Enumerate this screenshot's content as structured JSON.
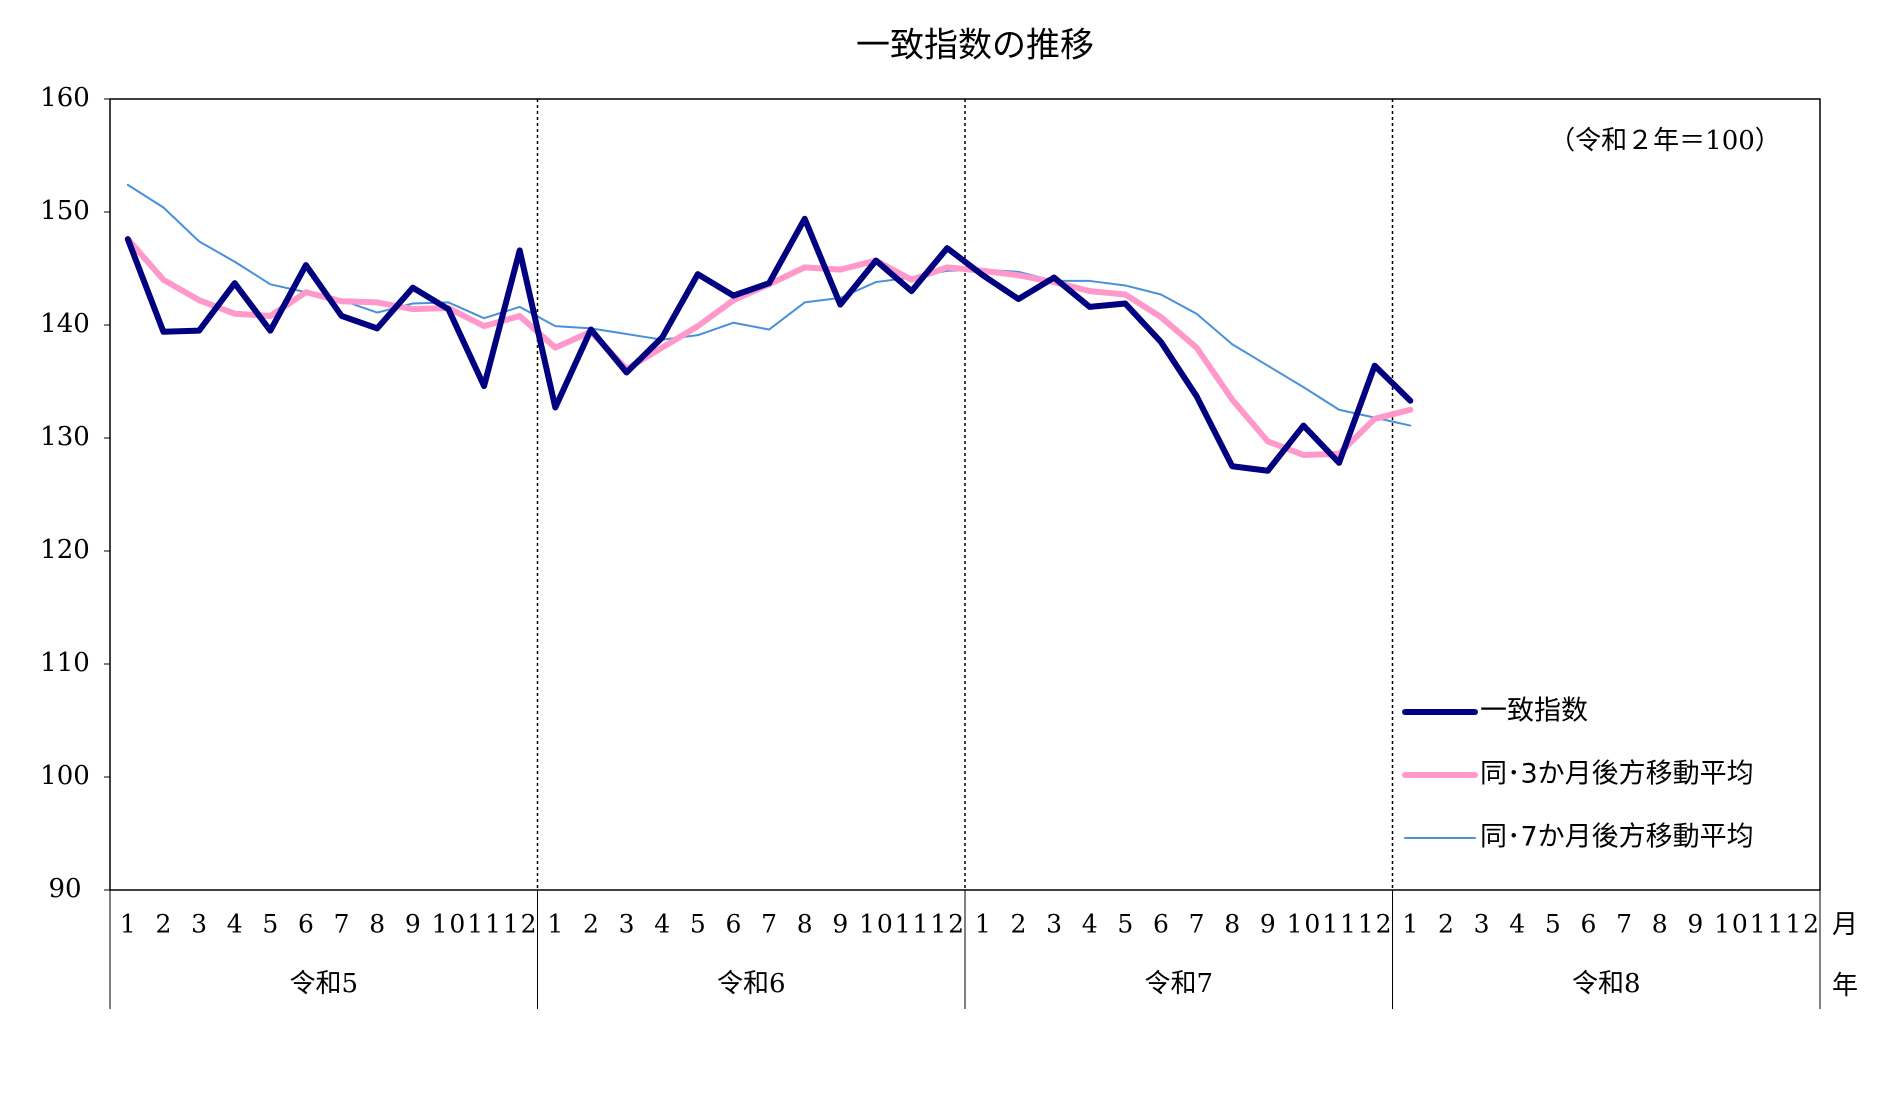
{
  "chart_data": {
    "type": "line",
    "title": "一致指数の推移",
    "note": "（令和２年＝100）",
    "x_unit_month": "月",
    "x_unit_year": "年",
    "categories": [
      "1",
      "2",
      "3",
      "4",
      "5",
      "6",
      "7",
      "8",
      "9",
      "10",
      "11",
      "12",
      "1",
      "2",
      "3",
      "4",
      "5",
      "6",
      "7",
      "8",
      "9",
      "10",
      "11",
      "12",
      "1",
      "2",
      "3",
      "4",
      "5",
      "6",
      "7",
      "8",
      "9",
      "10",
      "11",
      "12",
      "1",
      "2",
      "3",
      "4",
      "5",
      "6",
      "7",
      "8",
      "9",
      "10",
      "11",
      "12"
    ],
    "year_groups": [
      "令和5",
      "令和6",
      "令和7",
      "令和8"
    ],
    "ylim": [
      90,
      160
    ],
    "yticks": [
      90,
      100,
      110,
      120,
      130,
      140,
      150,
      160
    ],
    "grid": false,
    "legend": "right",
    "series": [
      {
        "name": "一致指数",
        "color": "#000080",
        "values": [
          147.6,
          139.4,
          139.5,
          143.7,
          139.5,
          145.3,
          140.8,
          139.7,
          143.3,
          141.4,
          134.6,
          146.6,
          132.7,
          139.6,
          135.8,
          138.9,
          144.5,
          142.6,
          143.7,
          149.4,
          141.8,
          145.7,
          143.0,
          146.8,
          144.4,
          142.3,
          144.2,
          141.6,
          141.9,
          138.5,
          133.7,
          127.5,
          127.1,
          131.1,
          127.8,
          136.4,
          133.3,
          null,
          null,
          null,
          null,
          null,
          null,
          null,
          null,
          null,
          null,
          null
        ]
      },
      {
        "name": "同･3か月後方移動平均",
        "color": "#ff99cc",
        "values": [
          147.6,
          144.0,
          142.2,
          141.0,
          140.8,
          142.9,
          142.1,
          142.0,
          141.4,
          141.5,
          139.9,
          140.8,
          138.0,
          139.4,
          136.1,
          138.0,
          139.9,
          142.2,
          143.6,
          145.1,
          144.9,
          145.7,
          144.0,
          145.1,
          144.8,
          144.4,
          143.8,
          143.0,
          142.7,
          140.7,
          138.0,
          133.4,
          129.7,
          128.5,
          128.6,
          131.7,
          132.5,
          null,
          null,
          null,
          null,
          null,
          null,
          null,
          null,
          null,
          null,
          null
        ]
      },
      {
        "name": "同･7か月後方移動平均",
        "color": "#4a90d9",
        "values": [
          152.4,
          150.4,
          147.4,
          145.6,
          143.6,
          142.9,
          142.2,
          141.1,
          141.9,
          142.0,
          140.6,
          141.6,
          139.9,
          139.7,
          139.2,
          138.7,
          139.1,
          140.2,
          139.6,
          142.0,
          142.4,
          143.8,
          144.2,
          144.8,
          144.9,
          144.7,
          143.9,
          143.9,
          143.5,
          142.7,
          141.0,
          138.3,
          136.4,
          134.5,
          132.5,
          131.8,
          131.1,
          null,
          null,
          null,
          null,
          null,
          null,
          null,
          null,
          null,
          null,
          null
        ]
      }
    ]
  }
}
